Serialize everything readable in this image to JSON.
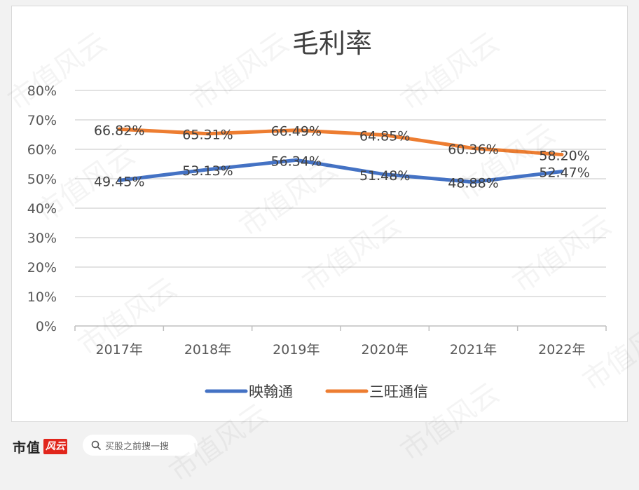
{
  "chart_data": {
    "type": "line",
    "title": "毛利率",
    "categories": [
      "2017年",
      "2018年",
      "2019年",
      "2020年",
      "2021年",
      "2022年"
    ],
    "series": [
      {
        "name": "映翰通",
        "color": "#4472c4",
        "values": [
          49.45,
          53.13,
          56.34,
          51.48,
          48.88,
          52.47
        ],
        "labels": [
          "49.45%",
          "53.13%",
          "56.34%",
          "51.48%",
          "48.88%",
          "52.47%"
        ]
      },
      {
        "name": "三旺通信",
        "color": "#ed7d31",
        "values": [
          66.82,
          65.31,
          66.49,
          64.85,
          60.36,
          58.2
        ],
        "labels": [
          "66.82%",
          "65.31%",
          "66.49%",
          "64.85%",
          "60.36%",
          "58.20%"
        ]
      }
    ],
    "yticks": [
      "0%",
      "10%",
      "20%",
      "30%",
      "40%",
      "50%",
      "60%",
      "70%",
      "80%"
    ],
    "ylim": [
      0,
      80
    ],
    "grid": true,
    "legend": "bottom",
    "xlabel": "",
    "ylabel": ""
  },
  "footer": {
    "brand_text": "市值",
    "brand_logo": "风云",
    "search_placeholder": "买股之前搜一搜",
    "search_icon": "search-icon"
  },
  "watermark_text": "市值风云"
}
